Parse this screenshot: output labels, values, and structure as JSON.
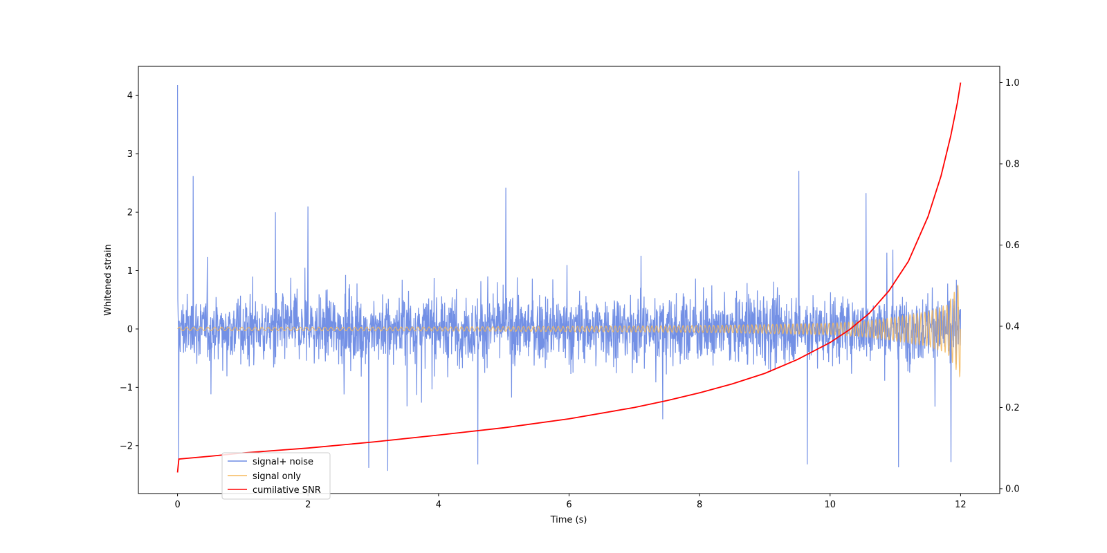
{
  "chart_data": {
    "type": "line",
    "title": "",
    "xlabel": "Time (s)",
    "ylabel": "Whitened strain",
    "y2label": "",
    "xlim": [
      -0.6,
      12.6
    ],
    "ylim": [
      -2.82,
      4.5
    ],
    "y2lim": [
      -0.012,
      1.04
    ],
    "xticks": [
      0,
      2,
      4,
      6,
      8,
      10,
      12
    ],
    "xtick_labels": [
      "0",
      "2",
      "4",
      "6",
      "8",
      "10",
      "12"
    ],
    "yticks": [
      -2,
      -1,
      0,
      1,
      2,
      3,
      4
    ],
    "ytick_labels": [
      "−2",
      "−1",
      "0",
      "1",
      "2",
      "3",
      "4"
    ],
    "y2ticks": [
      0.0,
      0.2,
      0.4,
      0.6,
      0.8,
      1.0
    ],
    "y2tick_labels": [
      "0.0",
      "0.2",
      "0.4",
      "0.6",
      "0.8",
      "1.0"
    ],
    "grid": false,
    "legend_position": "lower-left",
    "series": [
      {
        "name": "signal+ noise",
        "axis": "left",
        "color": "#6c8ae4",
        "description_of_values": "dense noisy strain around 0, typical range -1.2 to 1.2, peaks up to about 4.2 at t=0 and 2.7 near t=9.5, minimum about -2.4",
        "t_start": 0,
        "t_end": 12,
        "noise_envelope": [
          [
            0,
            1.0
          ],
          [
            12,
            1.0
          ]
        ],
        "notable_peaks": [
          [
            0.0,
            4.18
          ],
          [
            0.24,
            2.62
          ],
          [
            1.5,
            2.0
          ],
          [
            2.0,
            2.1
          ],
          [
            5.03,
            2.42
          ],
          [
            9.52,
            2.71
          ],
          [
            10.55,
            2.33
          ],
          [
            0.02,
            -2.25
          ],
          [
            2.93,
            -2.38
          ],
          [
            3.22,
            -2.43
          ],
          [
            4.6,
            -2.32
          ],
          [
            9.65,
            -2.32
          ],
          [
            11.05,
            -2.37
          ],
          [
            11.85,
            -2.28
          ]
        ]
      },
      {
        "name": "signal only",
        "axis": "left",
        "color": "#f5b95c",
        "amplitude_envelope": [
          [
            0,
            0.03
          ],
          [
            2,
            0.03
          ],
          [
            4,
            0.035
          ],
          [
            6,
            0.045
          ],
          [
            8,
            0.06
          ],
          [
            9,
            0.075
          ],
          [
            10,
            0.1
          ],
          [
            10.5,
            0.13
          ],
          [
            11,
            0.2
          ],
          [
            11.5,
            0.3
          ],
          [
            11.8,
            0.42
          ],
          [
            12,
            0.85
          ]
        ]
      },
      {
        "name": "cumilative SNR",
        "axis": "right",
        "color": "#ff0000",
        "x": [
          0,
          0.02,
          0.5,
          1,
          2,
          3,
          4,
          5,
          6,
          7,
          7.5,
          8,
          8.5,
          9,
          9.5,
          10,
          10.3,
          10.6,
          10.9,
          11.2,
          11.5,
          11.7,
          11.85,
          11.95,
          12
        ],
        "y": [
          0.04,
          0.073,
          0.08,
          0.088,
          0.1,
          0.115,
          0.132,
          0.15,
          0.172,
          0.2,
          0.217,
          0.236,
          0.258,
          0.284,
          0.318,
          0.36,
          0.392,
          0.432,
          0.487,
          0.56,
          0.67,
          0.77,
          0.87,
          0.95,
          1.0
        ]
      }
    ]
  }
}
